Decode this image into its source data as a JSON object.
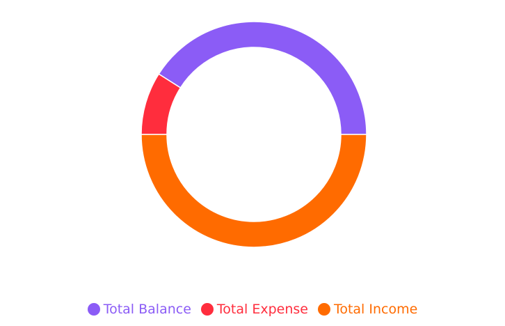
{
  "chart_data": {
    "type": "pie",
    "variant": "donut",
    "title": "",
    "series": [
      {
        "name": "Total Balance",
        "value": 41,
        "color": "#8B5CF6"
      },
      {
        "name": "Total Expense",
        "value": 9,
        "color": "#FF2D3D"
      },
      {
        "name": "Total Income",
        "value": 50,
        "color": "#FF6B00"
      }
    ],
    "legend_position": "bottom"
  }
}
